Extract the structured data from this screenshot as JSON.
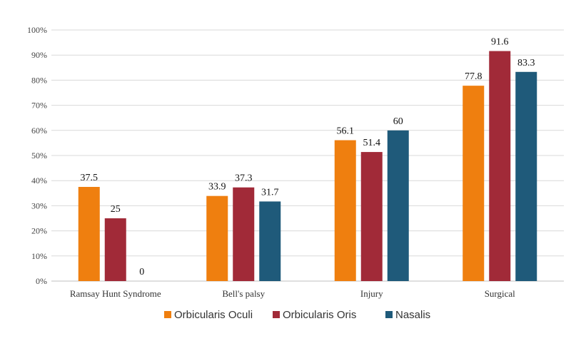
{
  "chart_data": {
    "type": "bar",
    "title": "",
    "xlabel": "",
    "ylabel": "",
    "categories": [
      "Ramsay Hunt Syndrome",
      "Bell's palsy",
      "Injury",
      "Surgical"
    ],
    "series": [
      {
        "name": "Orbicularis Oculi",
        "color": "#ef7f0f",
        "values": [
          37.5,
          33.9,
          56.1,
          77.8
        ]
      },
      {
        "name": "Orbicularis Oris",
        "color": "#a12a38",
        "values": [
          25,
          37.3,
          51.4,
          91.6
        ]
      },
      {
        "name": "Nasalis",
        "color": "#1f5a7a",
        "values": [
          0,
          31.7,
          60,
          83.3
        ]
      }
    ],
    "ylim": [
      0,
      100
    ],
    "y_ticks": [
      "0%",
      "10%",
      "20%",
      "30%",
      "40%",
      "50%",
      "60%",
      "70%",
      "80%",
      "90%",
      "100%"
    ],
    "grid": true,
    "legend_position": "bottom"
  }
}
